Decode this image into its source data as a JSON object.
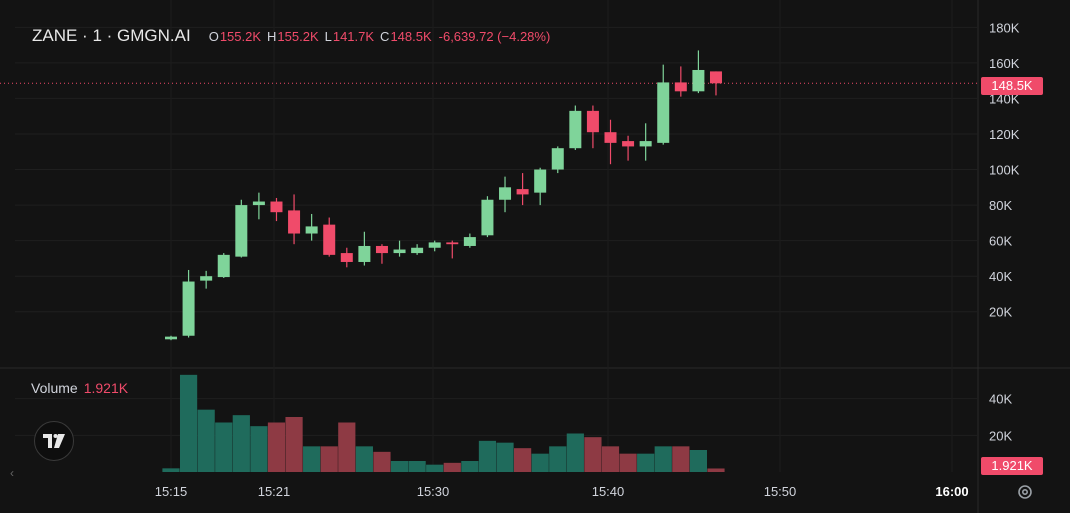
{
  "header": {
    "symbol": "ZANE · 1 · GMGN.AI",
    "open_key": "O",
    "open": "155.2K",
    "high_key": "H",
    "high": "155.2K",
    "low_key": "L",
    "low": "141.7K",
    "close_key": "C",
    "close": "148.5K",
    "change": "-6,639.72 (−4.28%)"
  },
  "volume_pane": {
    "label": "Volume",
    "value": "1.921K"
  },
  "price_tag": "148.5K",
  "volume_tag": "1.921K",
  "colors": {
    "up": "#7fd49a",
    "down": "#f04b6a",
    "vol_up": "#1f6b5c",
    "vol_down": "#8e3a44",
    "background": "#131313"
  },
  "chart_data": {
    "type": "candlestick",
    "price_axis": {
      "ticks": [
        20000,
        40000,
        60000,
        80000,
        100000,
        120000,
        140000,
        160000,
        180000
      ],
      "tick_labels": [
        "20K",
        "40K",
        "60K",
        "80K",
        "100K",
        "120K",
        "140K",
        "160K",
        "180K"
      ]
    },
    "volume_axis": {
      "ticks": [
        20000,
        40000
      ],
      "tick_labels": [
        "20K",
        "40K"
      ]
    },
    "time_axis": {
      "tick_labels": [
        "15:15",
        "15:21",
        "15:30",
        "15:40",
        "15:50",
        "16:00"
      ],
      "bold_label": "16:00"
    },
    "last_price": 148500,
    "candles": [
      {
        "time": "15:14",
        "open": 4500,
        "high": 6500,
        "low": 4000,
        "close": 6000,
        "volume": 2000
      },
      {
        "time": "15:15",
        "open": 6500,
        "high": 43500,
        "low": 5500,
        "close": 37000,
        "volume": 53000
      },
      {
        "time": "15:16",
        "open": 37500,
        "high": 43000,
        "low": 33000,
        "close": 40000,
        "volume": 34000
      },
      {
        "time": "15:17",
        "open": 39500,
        "high": 53000,
        "low": 39000,
        "close": 52000,
        "volume": 27000
      },
      {
        "time": "15:18",
        "open": 51000,
        "high": 83000,
        "low": 50500,
        "close": 80000,
        "volume": 31000
      },
      {
        "time": "15:19",
        "open": 80000,
        "high": 87000,
        "low": 72000,
        "close": 82000,
        "volume": 25000
      },
      {
        "time": "15:20",
        "open": 82000,
        "high": 84000,
        "low": 71000,
        "close": 76000,
        "volume": 27000
      },
      {
        "time": "15:21",
        "open": 77000,
        "high": 86000,
        "low": 58000,
        "close": 64000,
        "volume": 30000
      },
      {
        "time": "15:22",
        "open": 64000,
        "high": 75000,
        "low": 60000,
        "close": 68000,
        "volume": 14000
      },
      {
        "time": "15:23",
        "open": 69000,
        "high": 73000,
        "low": 51000,
        "close": 52000,
        "volume": 14000
      },
      {
        "time": "15:24",
        "open": 53000,
        "high": 56000,
        "low": 45000,
        "close": 48000,
        "volume": 27000
      },
      {
        "time": "15:25",
        "open": 48000,
        "high": 65000,
        "low": 46000,
        "close": 57000,
        "volume": 14000
      },
      {
        "time": "15:26",
        "open": 57000,
        "high": 58000,
        "low": 47000,
        "close": 53000,
        "volume": 11000
      },
      {
        "time": "15:27",
        "open": 53000,
        "high": 60000,
        "low": 51000,
        "close": 55000,
        "volume": 6000
      },
      {
        "time": "15:28",
        "open": 53000,
        "high": 58000,
        "low": 52000,
        "close": 56000,
        "volume": 6000
      },
      {
        "time": "15:29",
        "open": 56000,
        "high": 60000,
        "low": 54000,
        "close": 59000,
        "volume": 4000
      },
      {
        "time": "15:30",
        "open": 59000,
        "high": 60000,
        "low": 50000,
        "close": 58000,
        "volume": 5000
      },
      {
        "time": "15:31",
        "open": 57000,
        "high": 64000,
        "low": 56000,
        "close": 62000,
        "volume": 6000
      },
      {
        "time": "15:32",
        "open": 63000,
        "high": 85000,
        "low": 62000,
        "close": 83000,
        "volume": 17000
      },
      {
        "time": "15:33",
        "open": 83000,
        "high": 96000,
        "low": 76000,
        "close": 90000,
        "volume": 16000
      },
      {
        "time": "15:34",
        "open": 89000,
        "high": 98000,
        "low": 80000,
        "close": 86000,
        "volume": 13000
      },
      {
        "time": "15:35",
        "open": 87000,
        "high": 101000,
        "low": 80000,
        "close": 100000,
        "volume": 10000
      },
      {
        "time": "15:36",
        "open": 100000,
        "high": 113000,
        "low": 98000,
        "close": 112000,
        "volume": 14000
      },
      {
        "time": "15:37",
        "open": 112000,
        "high": 136000,
        "low": 111000,
        "close": 133000,
        "volume": 21000
      },
      {
        "time": "15:38",
        "open": 133000,
        "high": 136000,
        "low": 112000,
        "close": 121000,
        "volume": 19000
      },
      {
        "time": "15:39",
        "open": 121000,
        "high": 128000,
        "low": 103000,
        "close": 115000,
        "volume": 14000
      },
      {
        "time": "15:40",
        "open": 116000,
        "high": 119000,
        "low": 105000,
        "close": 113000,
        "volume": 10000
      },
      {
        "time": "15:41",
        "open": 113000,
        "high": 126000,
        "low": 105000,
        "close": 116000,
        "volume": 10000
      },
      {
        "time": "15:42",
        "open": 115000,
        "high": 159000,
        "low": 114000,
        "close": 149000,
        "volume": 14000
      },
      {
        "time": "15:43",
        "open": 149000,
        "high": 158000,
        "low": 141000,
        "close": 144000,
        "volume": 14000
      },
      {
        "time": "15:44",
        "open": 144000,
        "high": 167000,
        "low": 143000,
        "close": 156000,
        "volume": 12000
      },
      {
        "time": "15:45",
        "open": 155200,
        "high": 155200,
        "low": 141700,
        "close": 148500,
        "volume": 1921
      }
    ]
  }
}
